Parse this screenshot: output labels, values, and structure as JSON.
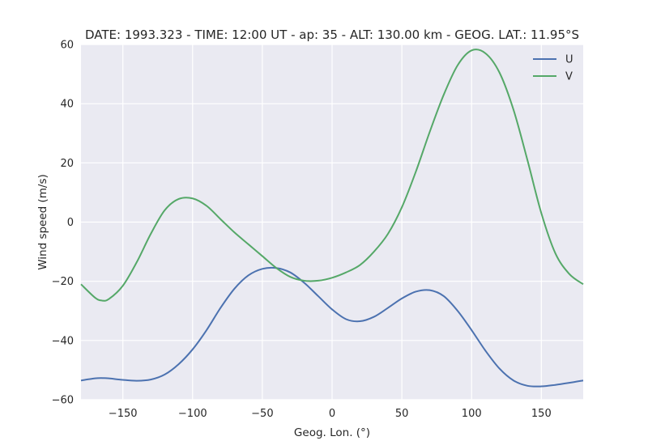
{
  "chart_data": {
    "type": "line",
    "title": "DATE: 1993.323 - TIME: 12:00 UT - ap:  35 - ALT:  130.00 km - GEOG. LAT.:  11.95°S",
    "xlabel": "Geog. Lon. (°)",
    "ylabel": "Wind speed (m/s)",
    "xlim": [
      -180,
      180
    ],
    "ylim": [
      -60,
      60
    ],
    "xticks": [
      -150,
      -100,
      -50,
      0,
      50,
      100,
      150
    ],
    "xtick_labels": [
      "−150",
      "−100",
      "−50",
      "0",
      "50",
      "100",
      "150"
    ],
    "yticks": [
      -60,
      -40,
      -20,
      0,
      20,
      40,
      60
    ],
    "ytick_labels": [
      "−60",
      "−40",
      "−20",
      "0",
      "20",
      "40",
      "60"
    ],
    "grid": true,
    "legend_position": "top-right",
    "background": "#eaeaf2",
    "x": [
      -180,
      -170,
      -165,
      -160,
      -150,
      -140,
      -130,
      -120,
      -110,
      -100,
      -90,
      -80,
      -70,
      -60,
      -50,
      -40,
      -30,
      -20,
      -10,
      0,
      10,
      20,
      30,
      40,
      50,
      60,
      70,
      80,
      90,
      100,
      110,
      120,
      130,
      140,
      150,
      160,
      170,
      180
    ],
    "series": [
      {
        "name": "U",
        "color": "#4c72b0",
        "values": [
          -53.5,
          -52.8,
          -52.7,
          -52.8,
          -53.3,
          -53.6,
          -53.2,
          -51.5,
          -48.0,
          -43.0,
          -36.5,
          -29.0,
          -22.5,
          -18.0,
          -15.8,
          -15.5,
          -17.0,
          -20.5,
          -25.0,
          -29.5,
          -32.8,
          -33.5,
          -32.0,
          -29.0,
          -25.8,
          -23.5,
          -23.0,
          -25.0,
          -30.0,
          -36.5,
          -43.5,
          -49.5,
          -53.5,
          -55.3,
          -55.5,
          -55.0,
          -54.3,
          -53.5
        ]
      },
      {
        "name": "V",
        "color": "#55a868",
        "values": [
          -21.0,
          -25.5,
          -26.5,
          -26.0,
          -21.5,
          -13.5,
          -4.0,
          4.0,
          7.8,
          8.0,
          5.5,
          1.0,
          -3.5,
          -7.5,
          -11.5,
          -15.5,
          -18.5,
          -19.8,
          -19.8,
          -18.8,
          -17.0,
          -14.5,
          -10.0,
          -4.0,
          5.0,
          17.0,
          30.5,
          43.0,
          53.0,
          58.0,
          57.0,
          50.5,
          38.0,
          21.0,
          3.0,
          -10.5,
          -17.5,
          -21.0
        ]
      }
    ]
  }
}
